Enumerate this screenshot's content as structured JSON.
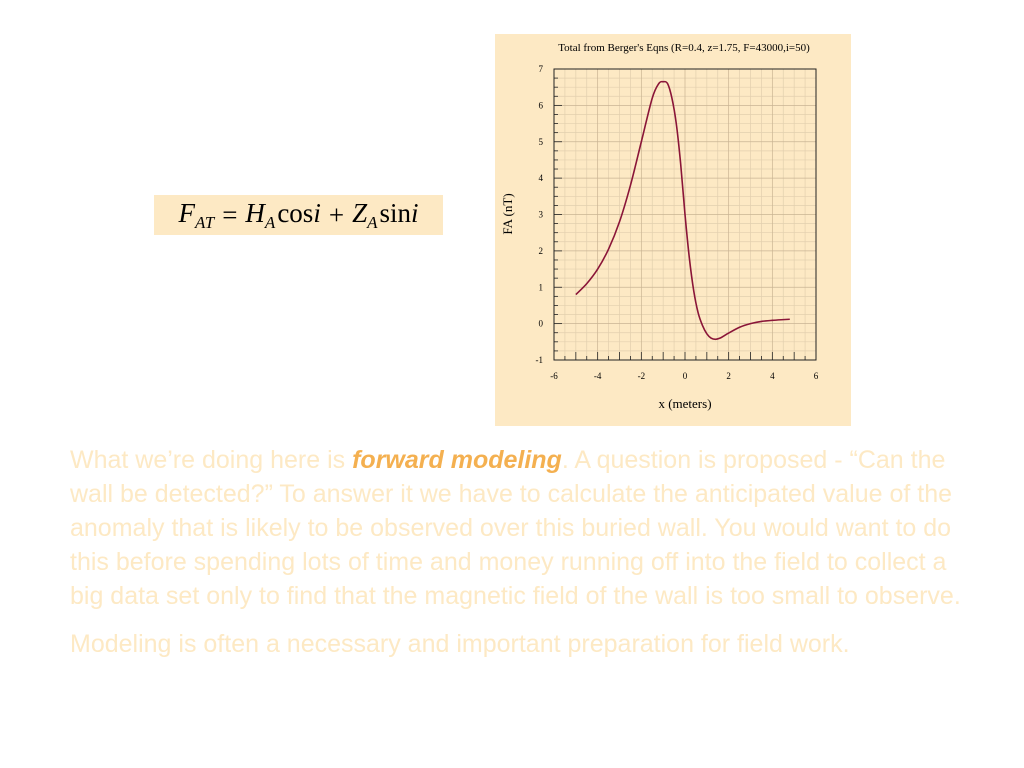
{
  "equation": {
    "lhs": "F",
    "lhs_sub": "AT",
    "equals": "=",
    "term1_symbol": "H",
    "term1_sub": "A",
    "term1_func": "cos",
    "term1_arg": "i",
    "plus": "+",
    "term2_symbol": "Z",
    "term2_sub": "A",
    "term2_func": "sin",
    "term2_arg": "i"
  },
  "chart_data": {
    "type": "line",
    "title": "Total from Berger's Eqns  (R=0.4, z=1.75, F=43000,i=50)",
    "xlabel": "x (meters)",
    "ylabel": "FA (nT)",
    "xlim": [
      -6,
      6
    ],
    "ylim": [
      -1,
      7
    ],
    "x_ticks": [
      "-6",
      "-4",
      "-2",
      "0",
      "2",
      "4",
      "6"
    ],
    "y_ticks": [
      "-1",
      "0",
      "1",
      "2",
      "3",
      "4",
      "5",
      "6",
      "7"
    ],
    "grid": true,
    "series": [
      {
        "color": "#8a1538",
        "x": [
          -5,
          -4.5,
          -4,
          -3.5,
          -3,
          -2.5,
          -2,
          -1.5,
          -1.2,
          -1,
          -0.8,
          -0.6,
          -0.4,
          -0.2,
          0,
          0.2,
          0.4,
          0.6,
          0.8,
          1,
          1.2,
          1.4,
          1.6,
          1.8,
          2,
          2.5,
          3,
          3.5,
          4,
          4.5,
          4.8
        ],
        "y": [
          0.8,
          1.1,
          1.5,
          2.05,
          2.8,
          3.8,
          5.0,
          6.2,
          6.6,
          6.65,
          6.6,
          6.2,
          5.5,
          4.4,
          3.0,
          1.8,
          0.9,
          0.3,
          -0.05,
          -0.28,
          -0.4,
          -0.43,
          -0.4,
          -0.33,
          -0.26,
          -0.1,
          0.0,
          0.06,
          0.09,
          0.11,
          0.12
        ]
      }
    ]
  },
  "text": {
    "para1_before": "What we’re doing here is ",
    "para1_emph": "forward modeling",
    "para1_after": ". A question is proposed - “Can the wall be detected?” To answer it we have to calculate the anticipated value of the anomaly that is likely to be observed over this buried wall. You would want to do this before spending lots of time and money running off into the field to collect a big data set only to find that the magnetic field of the wall is too small to observe.",
    "para2": "Modeling is often a necessary and important preparation for field work."
  }
}
